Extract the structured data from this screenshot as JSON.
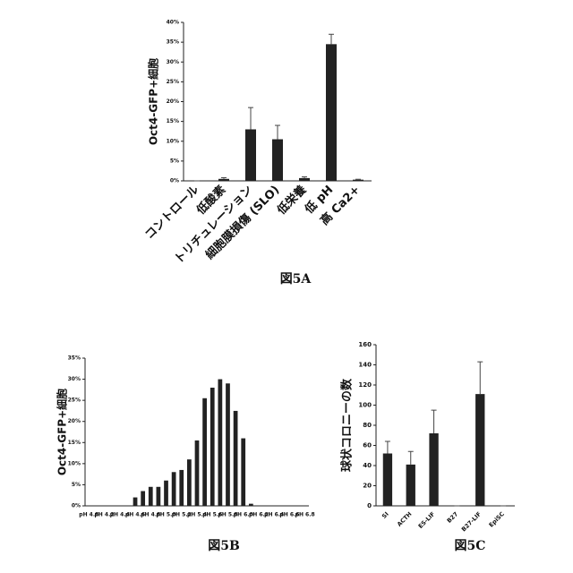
{
  "chart_data": [
    {
      "type": "bar",
      "ylabel": "Oct4-GFP+細胞",
      "caption": "図5A",
      "categories": [
        "コントロール",
        "低酸素",
        "トリチュレーション",
        "細胞膜損傷 (SLO)",
        "低栄養",
        "低 pH",
        "高 Ca2+"
      ],
      "values": [
        0,
        0.5,
        13,
        10.5,
        0.7,
        34.5,
        0.3
      ],
      "errors": [
        0,
        0.3,
        5.5,
        3.5,
        0.3,
        2.5,
        0.1
      ],
      "color": "#222222",
      "ylim": [
        0,
        40
      ],
      "yticks": [
        {
          "value": 0,
          "label": "0%"
        },
        {
          "value": 5,
          "label": "5%"
        },
        {
          "value": 10,
          "label": "10%"
        },
        {
          "value": 15,
          "label": "15%"
        },
        {
          "value": 20,
          "label": "20%"
        },
        {
          "value": 25,
          "label": "25%"
        },
        {
          "value": 30,
          "label": "30%"
        },
        {
          "value": 35,
          "label": "35%"
        },
        {
          "value": 40,
          "label": "40%"
        }
      ]
    },
    {
      "type": "bar",
      "ylabel": "Oct4-GFP+細胞",
      "caption": "図5B",
      "categories": [
        "pH 4.8",
        null,
        "pH 4.2",
        null,
        "pH 4.4",
        null,
        "pH 4.6",
        null,
        "pH 4.8",
        null,
        "pH 5.0",
        null,
        "pH 5.2",
        null,
        "pH 5.4",
        null,
        "pH 5.6",
        null,
        "pH 5.8",
        null,
        "pH 6.0",
        null,
        "pH 6.2",
        null,
        "pH 6.4",
        null,
        "pH 6.6",
        null,
        "pH 6.8"
      ],
      "values": [
        0,
        0,
        0,
        0,
        0,
        0,
        2,
        3.5,
        4.5,
        4.5,
        6,
        8,
        8.5,
        11,
        15.5,
        25.5,
        28,
        30,
        29,
        22.5,
        16,
        0.5,
        0,
        0,
        0,
        0,
        0,
        0,
        0
      ],
      "color": "#222222",
      "ylim": [
        0,
        35
      ],
      "yticks": [
        {
          "value": 0,
          "label": "0%"
        },
        {
          "value": 5,
          "label": "5%"
        },
        {
          "value": 10,
          "label": "10%"
        },
        {
          "value": 15,
          "label": "15%"
        },
        {
          "value": 20,
          "label": "20%"
        },
        {
          "value": 25,
          "label": "25%"
        },
        {
          "value": 30,
          "label": "30%"
        },
        {
          "value": 35,
          "label": "35%"
        }
      ]
    },
    {
      "type": "bar",
      "ylabel": "球状コロニーの数",
      "caption": "図5C",
      "categories": [
        "SI",
        "ACTH",
        "ES-LIF",
        "B27",
        "B27-LIF",
        "EpiSC"
      ],
      "values": [
        52,
        41,
        72,
        0,
        111,
        0
      ],
      "errors": [
        12,
        13,
        23,
        0,
        32,
        0
      ],
      "color": "#222222",
      "ylim": [
        0,
        160
      ],
      "yticks": [
        0,
        20,
        40,
        60,
        80,
        100,
        120,
        140,
        160
      ]
    }
  ]
}
